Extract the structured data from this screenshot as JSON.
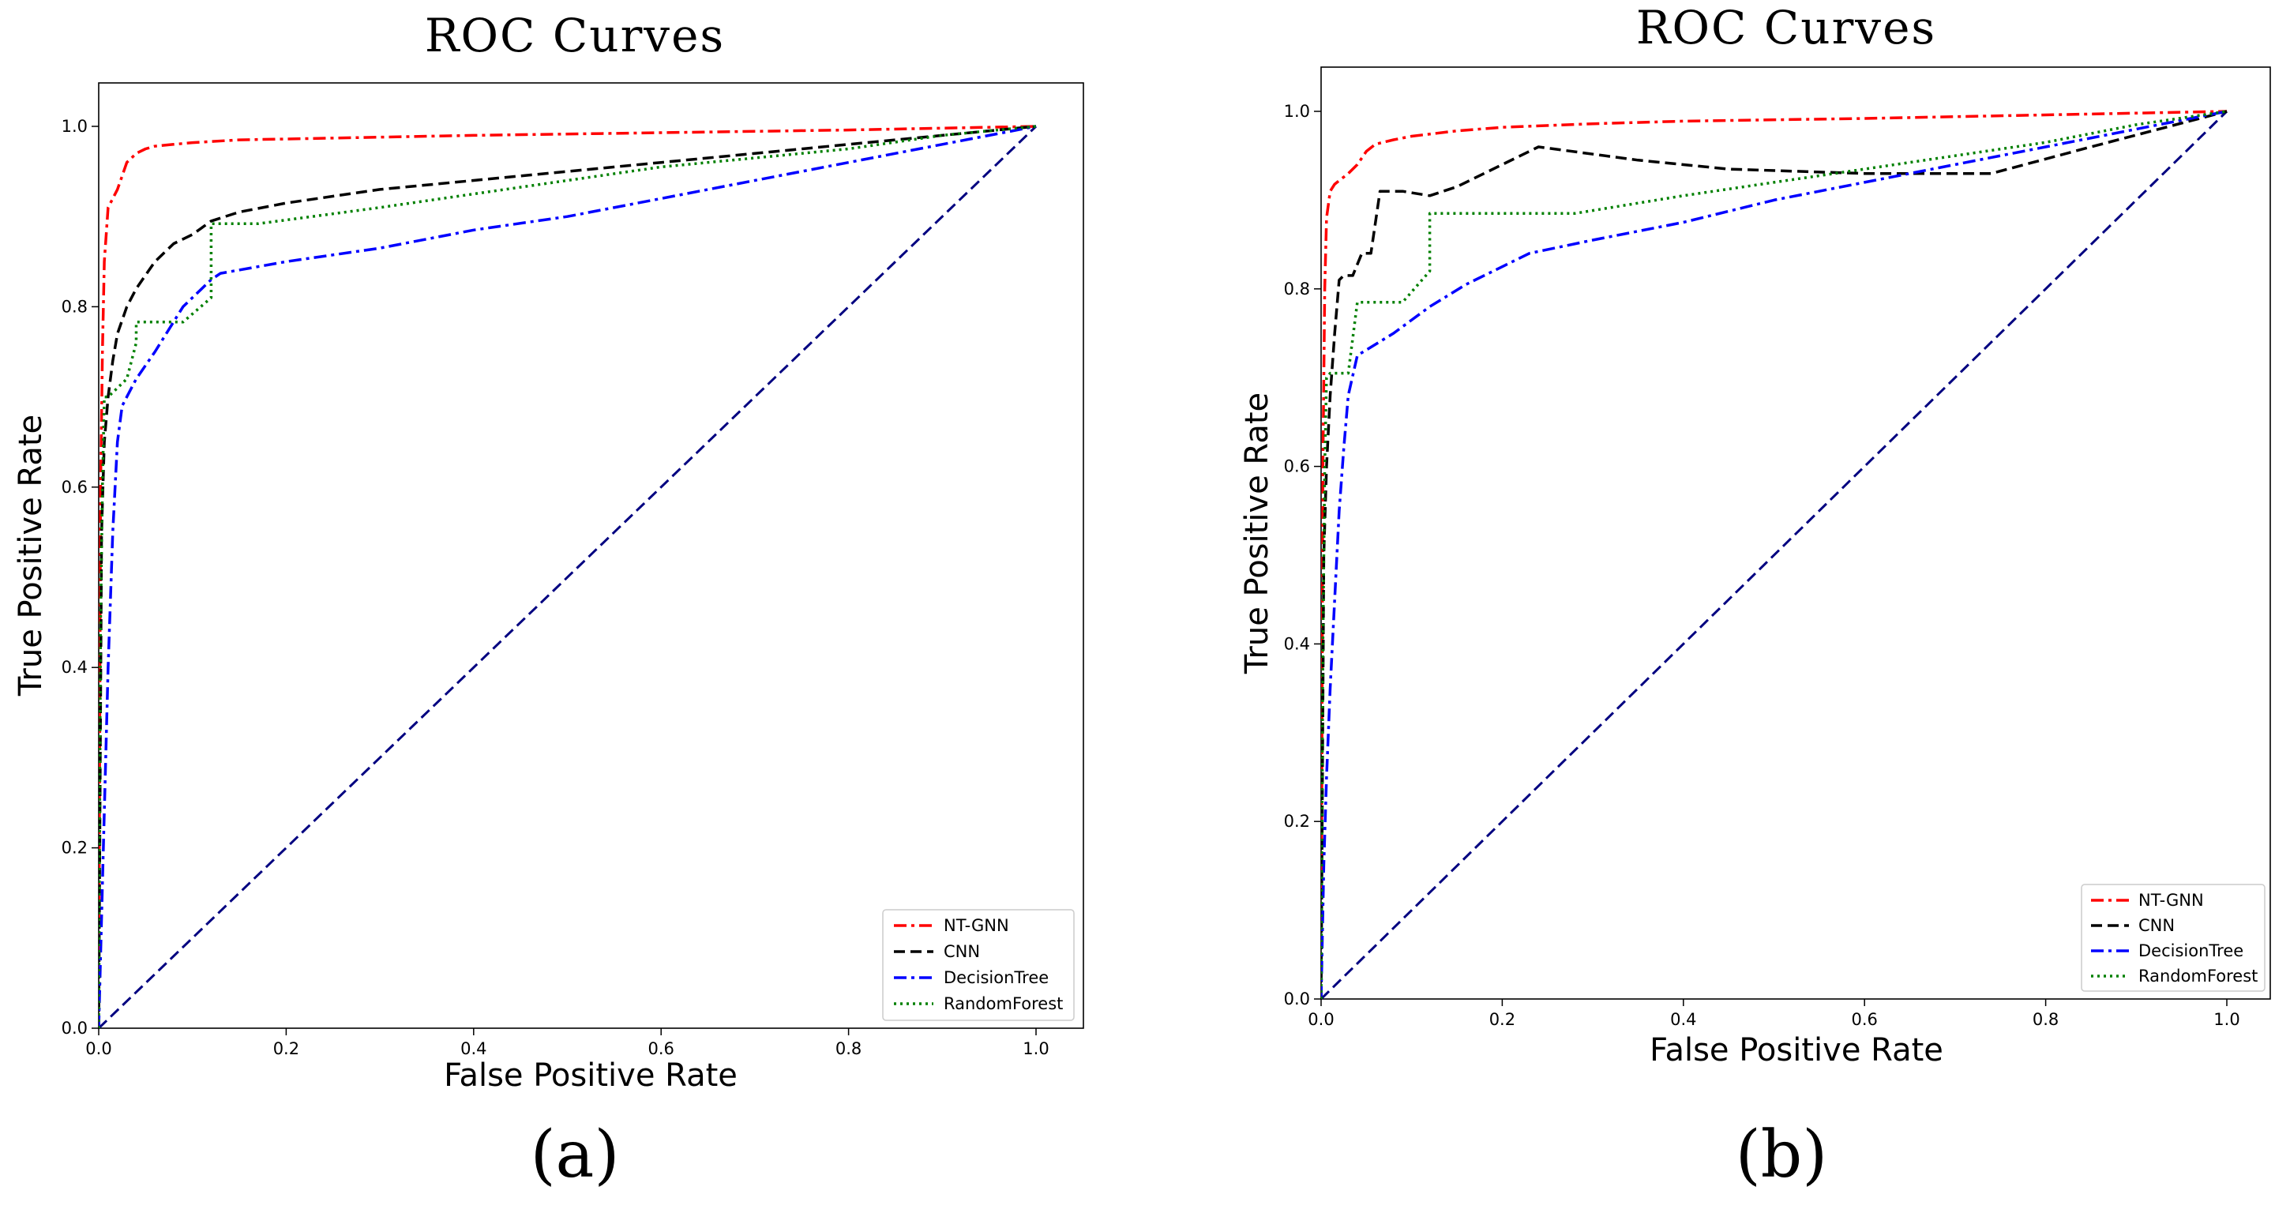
{
  "chart_data": [
    {
      "type": "line",
      "panel_label": "(a)",
      "title": "ROC Curves",
      "xlabel": "False Positive Rate",
      "ylabel": "True Positive Rate",
      "xlim": [
        0.0,
        1.05
      ],
      "ylim": [
        0.0,
        1.05
      ],
      "xticks": [
        0.0,
        0.2,
        0.4,
        0.6,
        0.8,
        1.0
      ],
      "yticks": [
        0.0,
        0.2,
        0.4,
        0.6,
        0.8,
        1.0
      ],
      "xtick_labels": [
        "0.0",
        "0.2",
        "0.4",
        "0.6",
        "0.8",
        "1.0"
      ],
      "ytick_labels": [
        "0.0",
        "0.2",
        "0.4",
        "0.6",
        "0.8",
        "1.0"
      ],
      "grid": false,
      "legend_position": "lower-right",
      "series": [
        {
          "name": "NT-GNN",
          "color": "#ff0000",
          "style": "dashdot",
          "x": [
            0,
            0.002,
            0.004,
            0.006,
            0.01,
            0.015,
            0.02,
            0.025,
            0.03,
            0.04,
            0.05,
            0.06,
            0.08,
            0.1,
            0.15,
            0.2,
            0.3,
            0.4,
            0.6,
            0.8,
            1.0
          ],
          "y": [
            0,
            0.6,
            0.75,
            0.85,
            0.91,
            0.92,
            0.93,
            0.945,
            0.96,
            0.97,
            0.975,
            0.978,
            0.98,
            0.982,
            0.985,
            0.986,
            0.988,
            0.99,
            0.993,
            0.996,
            1.0
          ]
        },
        {
          "name": "CNN",
          "color": "#000000",
          "style": "dashed",
          "x": [
            0,
            0.003,
            0.006,
            0.01,
            0.015,
            0.02,
            0.03,
            0.04,
            0.05,
            0.06,
            0.08,
            0.1,
            0.12,
            0.15,
            0.2,
            0.3,
            0.4,
            0.5,
            0.6,
            0.7,
            0.8,
            0.9,
            1.0
          ],
          "y": [
            0,
            0.55,
            0.65,
            0.7,
            0.74,
            0.77,
            0.8,
            0.82,
            0.835,
            0.85,
            0.87,
            0.88,
            0.895,
            0.905,
            0.915,
            0.93,
            0.94,
            0.95,
            0.96,
            0.97,
            0.98,
            0.99,
            1.0
          ]
        },
        {
          "name": "DecisionTree",
          "color": "#0000ff",
          "style": "dashdot",
          "x": [
            0,
            0.005,
            0.01,
            0.015,
            0.02,
            0.025,
            0.03,
            0.04,
            0.06,
            0.09,
            0.12,
            0.13,
            0.2,
            0.3,
            0.4,
            0.5,
            0.6,
            0.7,
            0.8,
            0.9,
            1.0
          ],
          "y": [
            0,
            0.2,
            0.4,
            0.55,
            0.65,
            0.69,
            0.7,
            0.72,
            0.75,
            0.8,
            0.83,
            0.837,
            0.85,
            0.865,
            0.885,
            0.9,
            0.92,
            0.94,
            0.96,
            0.98,
            1.0
          ]
        },
        {
          "name": "RandomForest",
          "color": "#008000",
          "style": "dotted",
          "x": [
            0,
            0.002,
            0.004,
            0.006,
            0.01,
            0.03,
            0.04,
            0.04,
            0.09,
            0.12,
            0.12,
            0.17,
            0.3,
            0.4,
            0.5,
            0.6,
            0.7,
            0.8,
            0.9,
            1.0
          ],
          "y": [
            0,
            0.45,
            0.6,
            0.7,
            0.7,
            0.72,
            0.76,
            0.783,
            0.783,
            0.81,
            0.892,
            0.892,
            0.91,
            0.925,
            0.94,
            0.955,
            0.965,
            0.975,
            0.99,
            1.0
          ]
        },
        {
          "name": "",
          "color": "#000080",
          "style": "dashed",
          "x": [
            0,
            1.0
          ],
          "y": [
            0,
            1.0
          ]
        }
      ]
    },
    {
      "type": "line",
      "panel_label": "(b)",
      "title": "ROC Curves",
      "xlabel": "False Positive Rate",
      "ylabel": "True Positive Rate",
      "xlim": [
        0.0,
        1.05
      ],
      "ylim": [
        0.0,
        1.05
      ],
      "xticks": [
        0.0,
        0.2,
        0.4,
        0.6,
        0.8,
        1.0
      ],
      "yticks": [
        0.0,
        0.2,
        0.4,
        0.6,
        0.8,
        1.0
      ],
      "xtick_labels": [
        "0.0",
        "0.2",
        "0.4",
        "0.6",
        "0.8",
        "1.0"
      ],
      "ytick_labels": [
        "0.0",
        "0.2",
        "0.4",
        "0.6",
        "0.8",
        "1.0"
      ],
      "grid": false,
      "legend_position": "lower-right",
      "series": [
        {
          "name": "NT-GNN",
          "color": "#ff0000",
          "style": "dashdot",
          "x": [
            0,
            0.002,
            0.004,
            0.006,
            0.01,
            0.015,
            0.02,
            0.03,
            0.04,
            0.05,
            0.06,
            0.08,
            0.1,
            0.15,
            0.2,
            0.3,
            0.4,
            0.6,
            0.8,
            1.0
          ],
          "y": [
            0,
            0.6,
            0.8,
            0.88,
            0.91,
            0.918,
            0.922,
            0.93,
            0.94,
            0.955,
            0.963,
            0.968,
            0.972,
            0.978,
            0.982,
            0.986,
            0.989,
            0.992,
            0.996,
            1.0
          ]
        },
        {
          "name": "CNN",
          "color": "#000000",
          "style": "dashed",
          "x": [
            0,
            0.003,
            0.006,
            0.01,
            0.015,
            0.02,
            0.025,
            0.035,
            0.045,
            0.055,
            0.065,
            0.09,
            0.12,
            0.15,
            0.2,
            0.24,
            0.35,
            0.45,
            0.6,
            0.74,
            0.85,
            1.0
          ],
          "y": [
            0,
            0.5,
            0.6,
            0.68,
            0.75,
            0.81,
            0.815,
            0.815,
            0.84,
            0.84,
            0.91,
            0.91,
            0.905,
            0.915,
            0.94,
            0.96,
            0.945,
            0.935,
            0.93,
            0.93,
            0.96,
            1.0
          ]
        },
        {
          "name": "DecisionTree",
          "color": "#0000ff",
          "style": "dashdot",
          "x": [
            0,
            0.003,
            0.006,
            0.01,
            0.015,
            0.02,
            0.025,
            0.03,
            0.04,
            0.08,
            0.12,
            0.16,
            0.23,
            0.3,
            0.4,
            0.5,
            0.6,
            0.7,
            0.8,
            0.9,
            1.0
          ],
          "y": [
            0,
            0.15,
            0.25,
            0.35,
            0.45,
            0.55,
            0.62,
            0.68,
            0.725,
            0.75,
            0.78,
            0.805,
            0.84,
            0.855,
            0.875,
            0.9,
            0.92,
            0.94,
            0.96,
            0.98,
            1.0
          ]
        },
        {
          "name": "RandomForest",
          "color": "#008000",
          "style": "dotted",
          "x": [
            0,
            0.002,
            0.004,
            0.006,
            0.01,
            0.03,
            0.04,
            0.05,
            0.09,
            0.12,
            0.12,
            0.2,
            0.28,
            0.4,
            0.5,
            0.6,
            0.7,
            0.8,
            0.9,
            1.0
          ],
          "y": [
            0,
            0.4,
            0.6,
            0.7,
            0.705,
            0.705,
            0.785,
            0.785,
            0.785,
            0.82,
            0.885,
            0.885,
            0.885,
            0.905,
            0.92,
            0.935,
            0.95,
            0.965,
            0.985,
            1.0
          ]
        },
        {
          "name": "",
          "color": "#000080",
          "style": "dashed",
          "x": [
            0,
            1.0
          ],
          "y": [
            0,
            1.0
          ]
        }
      ]
    }
  ]
}
